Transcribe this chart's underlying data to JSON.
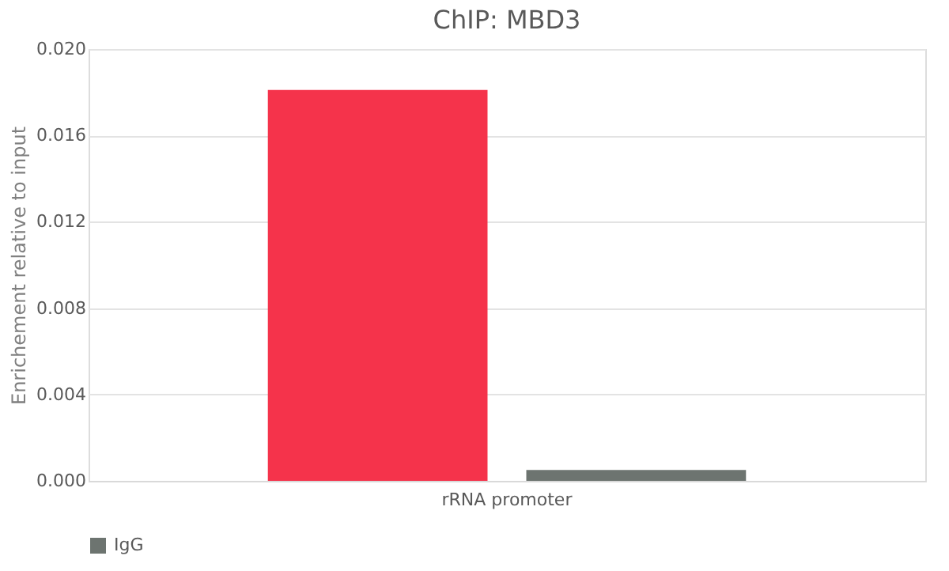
{
  "chart_data": {
    "type": "bar",
    "title": "ChIP: MBD3",
    "ylabel": "Enrichement relative to input",
    "categories": [
      "rRNA promoter"
    ],
    "series": [
      {
        "color": "#f5334b",
        "values": [
          0.0181
        ]
      },
      {
        "name": "IgG",
        "color": "#6d7470",
        "values": [
          0.0005
        ]
      }
    ],
    "ylim": [
      0,
      0.02
    ],
    "yticks": [
      {
        "value": 0,
        "label": "0.000"
      },
      {
        "value": 0.004,
        "label": "0.004"
      },
      {
        "value": 0.008,
        "label": "0.008"
      },
      {
        "value": 0.012,
        "label": "0.012"
      },
      {
        "value": 0.016,
        "label": "0.016"
      },
      {
        "value": 0.02,
        "label": "0.020"
      }
    ],
    "grid": "y",
    "legend": "bottom"
  }
}
